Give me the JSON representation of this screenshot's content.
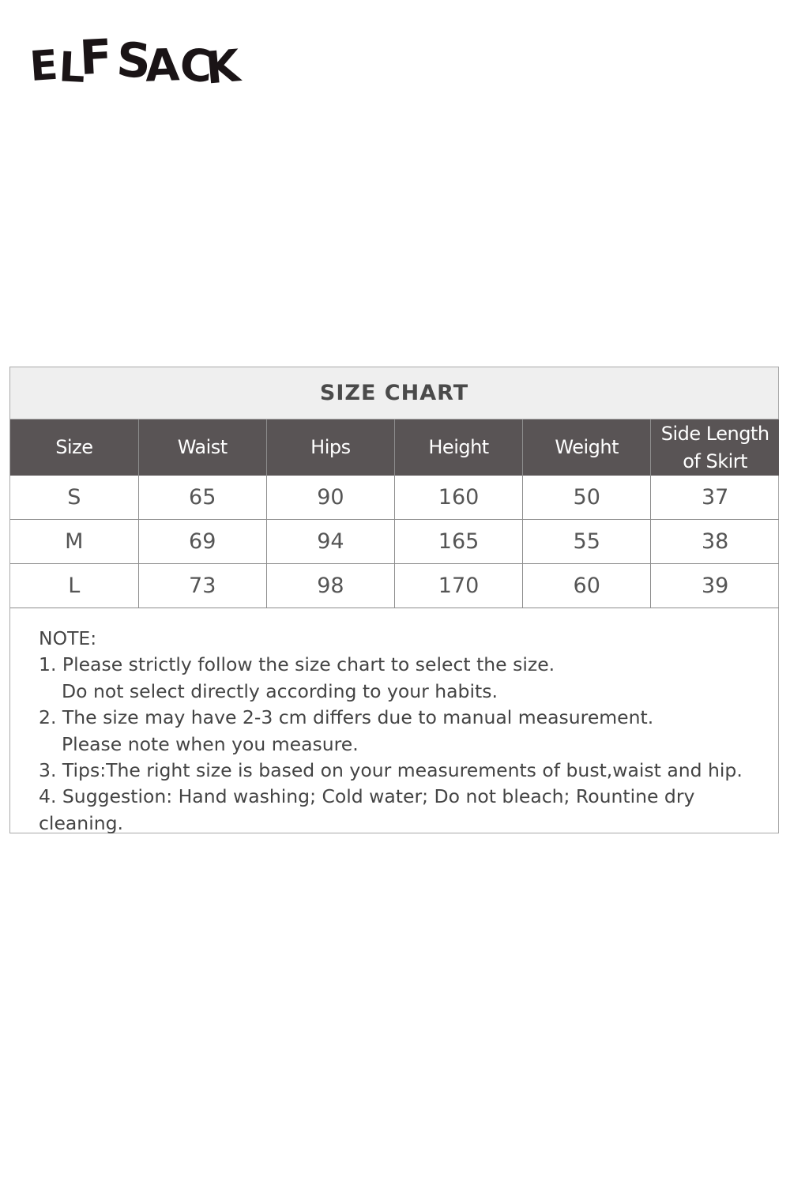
{
  "brand": {
    "logo_text": "ELFSACK"
  },
  "size_chart": {
    "title": "SIZE CHART",
    "columns": [
      "Size",
      "Waist",
      "Hips",
      "Height",
      "Weight",
      "Side Length of Skirt"
    ],
    "rows": [
      [
        "S",
        "65",
        "90",
        "160",
        "50",
        "37"
      ],
      [
        "M",
        "69",
        "94",
        "165",
        "55",
        "38"
      ],
      [
        "L",
        "73",
        "98",
        "170",
        "60",
        "39"
      ]
    ]
  },
  "notes": {
    "heading": "NOTE:",
    "lines": [
      "1. Please strictly follow the size chart to select the size.",
      "Do not select directly according to your habits.",
      "2. The size may have 2-3 cm differs due to manual measurement.",
      "Please note when you measure.",
      "3. Tips:The right size is based on your measurements of bust,waist and hip.",
      "4. Suggestion: Hand washing; Cold water; Do not bleach; Rountine dry cleaning."
    ]
  },
  "colors": {
    "header_bg": "#595455",
    "title_bg": "#efefef",
    "text": "#555555"
  }
}
